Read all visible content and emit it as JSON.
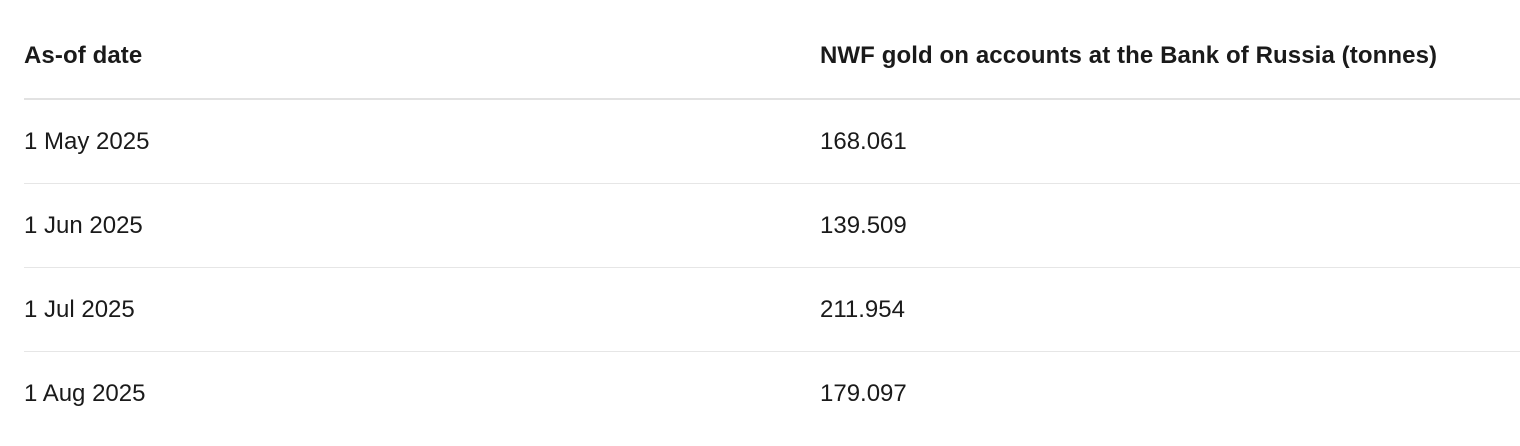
{
  "table": {
    "headers": [
      "As-of date",
      "NWF gold on accounts at the Bank of Russia (tonnes)"
    ],
    "rows": [
      [
        "1 May 2025",
        "168.061"
      ],
      [
        "1 Jun 2025",
        "139.509"
      ],
      [
        "1 Jul 2025",
        "211.954"
      ],
      [
        "1 Aug 2025",
        "179.097"
      ]
    ]
  }
}
